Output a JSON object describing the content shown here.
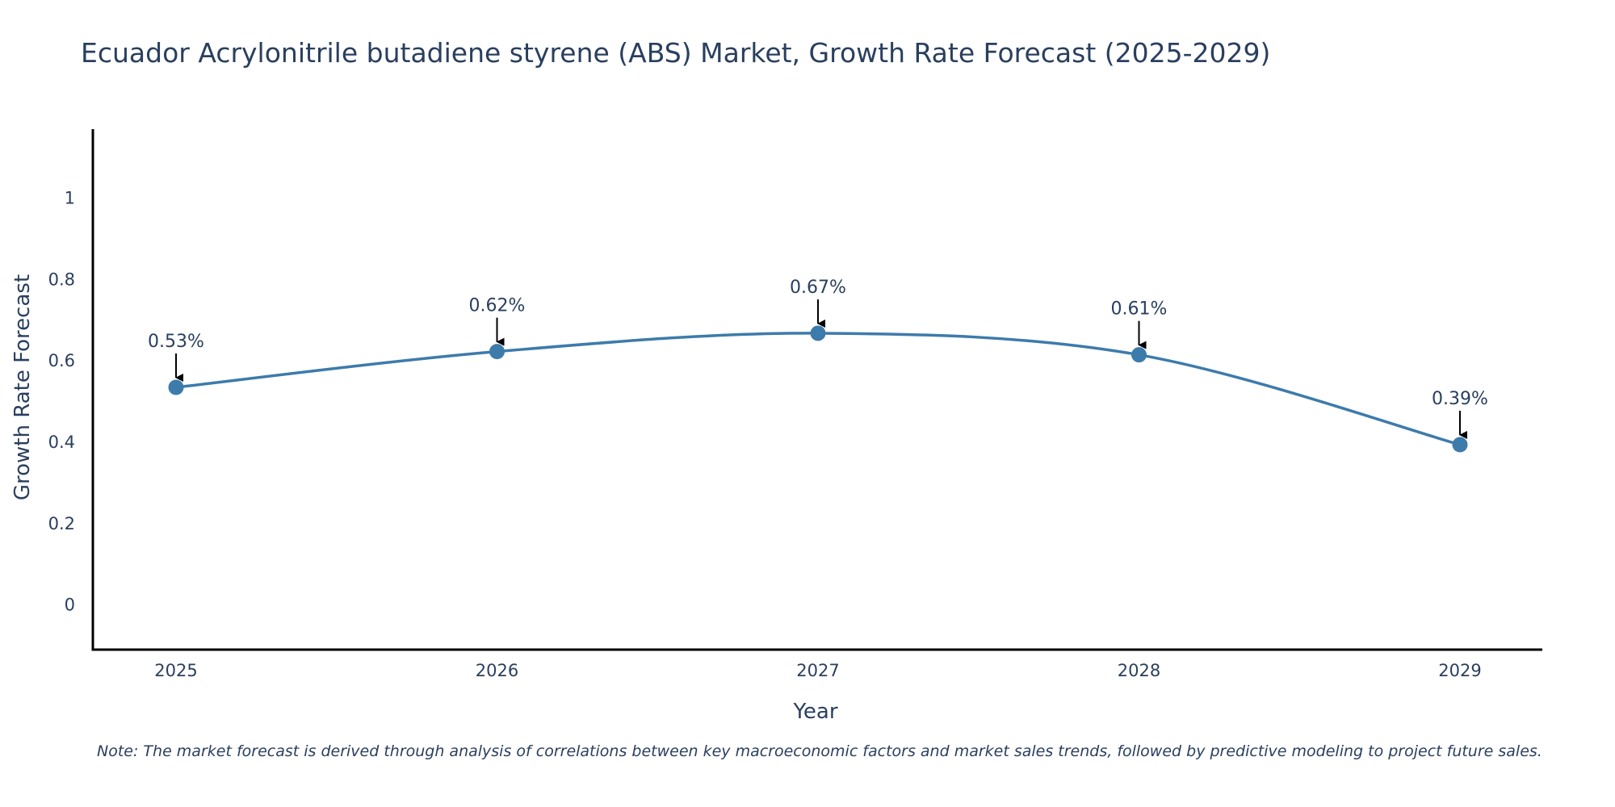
{
  "chart_data": {
    "type": "line",
    "title": "Ecuador Acrylonitrile butadiene styrene (ABS) Market, Growth Rate Forecast (2025-2029)",
    "xlabel": "Year",
    "ylabel": "Growth Rate Forecast",
    "categories": [
      "2025",
      "2026",
      "2027",
      "2028",
      "2029"
    ],
    "series": [
      {
        "name": "Growth Rate Forecast",
        "values": [
          0.535,
          0.623,
          0.668,
          0.615,
          0.394
        ],
        "labels": [
          "0.53%",
          "0.62%",
          "0.67%",
          "0.61%",
          "0.39%"
        ],
        "color": "#3d7bab"
      }
    ],
    "ylim": [
      -0.11,
      1.17
    ],
    "yticks": [
      0,
      0.2,
      0.4,
      0.6,
      0.8,
      1
    ],
    "ytick_labels": [
      "0",
      "0.2",
      "0.4",
      "0.6",
      "0.8",
      "1"
    ],
    "grid": false,
    "line_shape": "spline"
  },
  "note": "Note: The market forecast is derived through analysis of correlations between key macroeconomic factors and market sales trends, followed by predictive modeling to project future sales.",
  "colors": {
    "line": "#3d7bab",
    "axis": "#000000",
    "text": "#2a3f5f",
    "arrow": "#000000"
  }
}
